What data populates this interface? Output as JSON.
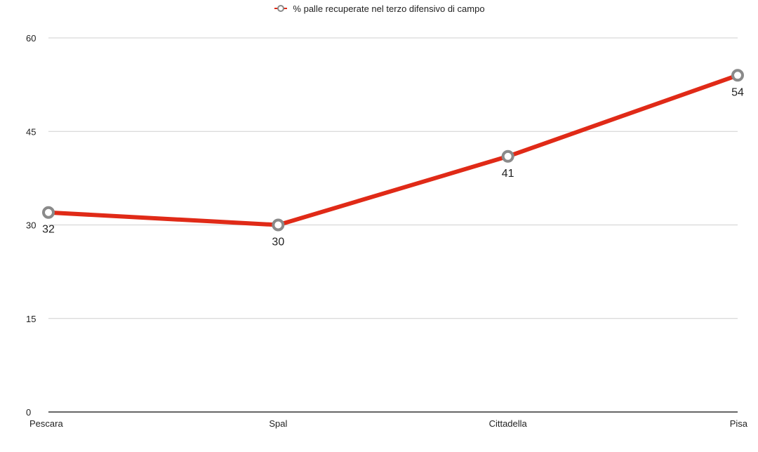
{
  "chart_data": {
    "type": "line",
    "categories": [
      "Pescara",
      "Spal",
      "Cittadella",
      "Pisa"
    ],
    "series": [
      {
        "name": "% palle recuperate nel terzo difensivo di campo",
        "values": [
          32,
          30,
          41,
          54
        ],
        "color": "#e02a17",
        "marker_color": "#8a8a8a"
      }
    ],
    "ylim": [
      0,
      60
    ],
    "yticks": [
      0,
      15,
      30,
      45,
      60
    ],
    "grid": true,
    "legend_position": "top-center",
    "data_labels": true
  }
}
